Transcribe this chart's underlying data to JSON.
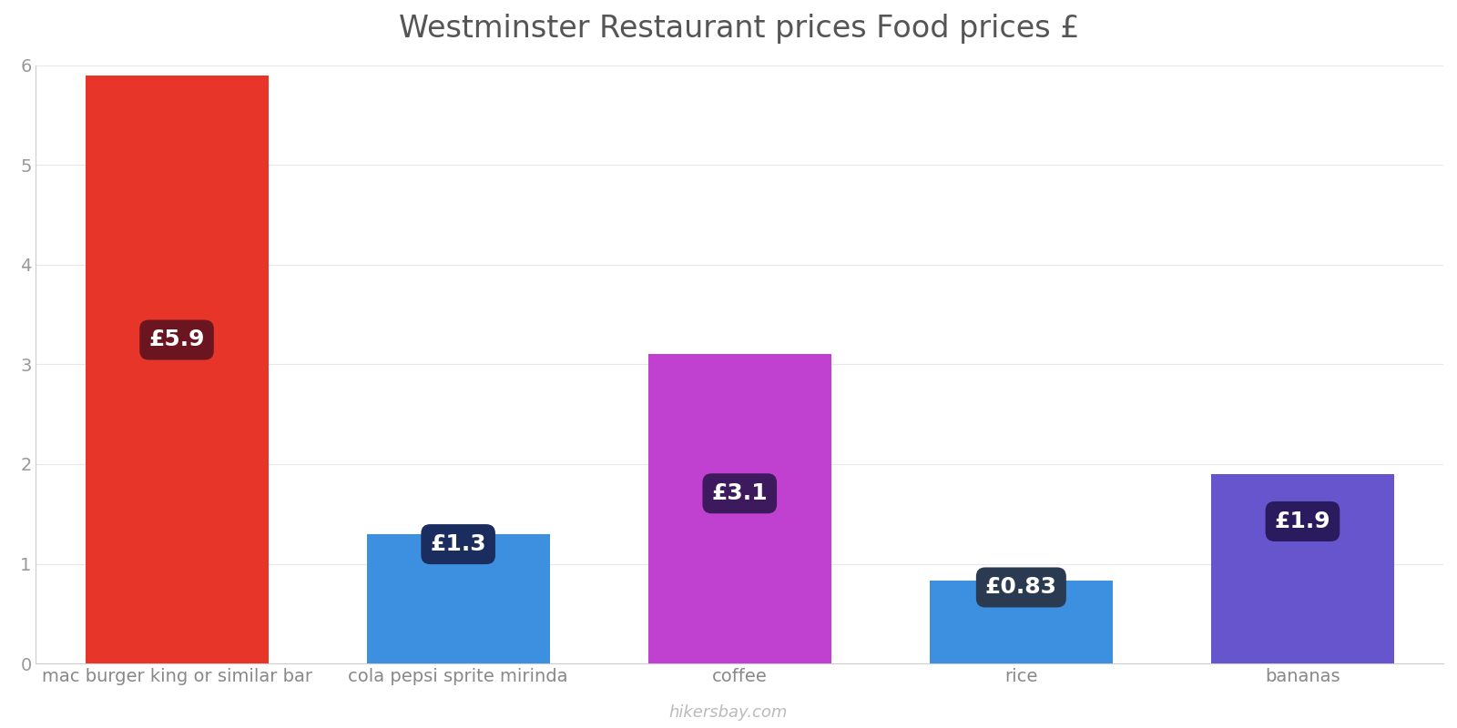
{
  "title": "Westminster Restaurant prices Food prices £",
  "categories": [
    "mac burger king or similar bar",
    "cola pepsi sprite mirinda",
    "coffee",
    "rice",
    "bananas"
  ],
  "values": [
    5.9,
    1.3,
    3.1,
    0.83,
    1.9
  ],
  "bar_colors": [
    "#e8352a",
    "#3d8fe0",
    "#c040d0",
    "#3d8fe0",
    "#6655cc"
  ],
  "label_texts": [
    "£5.9",
    "£1.3",
    "£3.1",
    "£0.83",
    "£1.9"
  ],
  "label_box_colors": [
    "#6a1520",
    "#1a2d5e",
    "#3d1a5e",
    "#2a3a50",
    "#2a1a5e"
  ],
  "label_box_top_colors": [
    "#6a1520",
    "#1a2d5e",
    "#3d1a5e",
    "#808080",
    "#2a1a5e"
  ],
  "ylim": [
    0,
    6
  ],
  "yticks": [
    0,
    1,
    2,
    3,
    4,
    5,
    6
  ],
  "title_fontsize": 24,
  "tick_fontsize": 14,
  "label_fontsize": 18,
  "watermark": "hikersbay.com",
  "background_color": "#ffffff"
}
